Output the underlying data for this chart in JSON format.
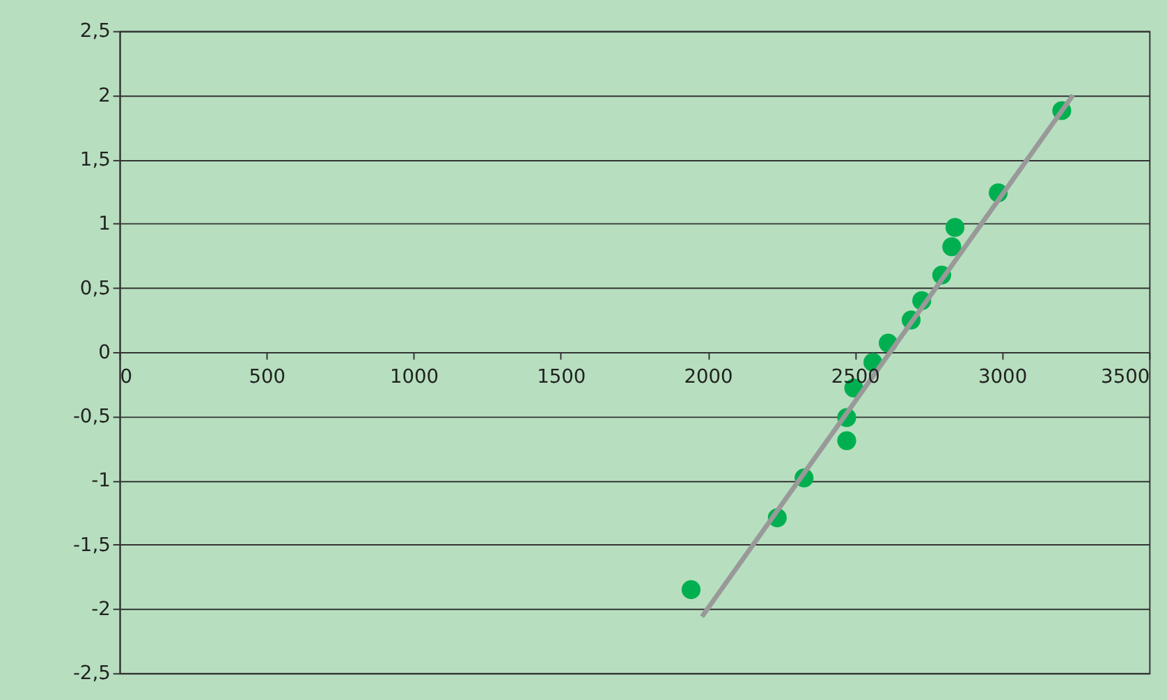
{
  "chart_data": {
    "type": "scatter",
    "series": [
      {
        "color": "#00b050",
        "marker": "circle",
        "x": [
          1943,
          2236,
          2327,
          2472,
          2472,
          2496,
          2561,
          2613,
          2691,
          2727,
          2795,
          2829,
          2840,
          2987,
          3203
        ],
        "values": [
          -1.85,
          -1.29,
          -0.98,
          -0.69,
          -0.51,
          -0.28,
          -0.08,
          0.07,
          0.25,
          0.4,
          0.6,
          0.82,
          0.97,
          1.24,
          1.88
        ]
      },
      {
        "type": "line",
        "color": "#999999",
        "line_style": "solid",
        "x": [
          1980,
          3241
        ],
        "values": [
          -2.06,
          2.0
        ]
      }
    ],
    "xlim": [
      0,
      3500
    ],
    "xticks": [
      0,
      500,
      1000,
      1500,
      2000,
      2500,
      3000,
      3500
    ],
    "ylim": [
      -2.5,
      2.5
    ],
    "yticks": [
      {
        "value": -2.5,
        "label": "-2,5"
      },
      -2,
      {
        "value": -1.5,
        "label": "-1,5"
      },
      -1,
      {
        "value": -0.5,
        "label": "-0,5"
      },
      0,
      {
        "value": 0.5,
        "label": "0,5"
      },
      1,
      {
        "value": 1.5,
        "label": "1,5"
      },
      2,
      {
        "value": 2.5,
        "label": "2,5"
      }
    ],
    "grid": "y"
  }
}
